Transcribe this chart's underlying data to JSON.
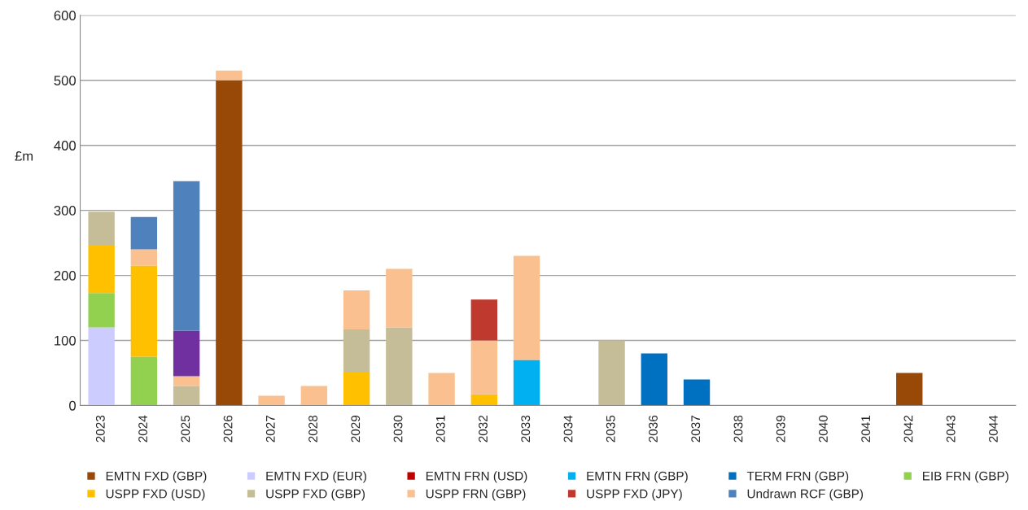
{
  "chart_data": {
    "type": "bar",
    "stacked": true,
    "ylabel": "£m",
    "categories": [
      "2023",
      "2024",
      "2025",
      "2026",
      "2027",
      "2028",
      "2029",
      "2030",
      "2031",
      "2032",
      "2033",
      "2034",
      "2035",
      "2036",
      "2037",
      "2038",
      "2039",
      "2040",
      "2041",
      "2042",
      "2043",
      "2044"
    ],
    "ylim": [
      0,
      600
    ],
    "yticks": [
      0,
      100,
      200,
      300,
      400,
      500,
      600
    ],
    "grid": "y",
    "legend": "bottom",
    "series": [
      {
        "name": "EMTN FXD (GBP)",
        "color": "#984807",
        "values": [
          null,
          null,
          null,
          500,
          null,
          null,
          null,
          null,
          null,
          null,
          null,
          null,
          null,
          null,
          null,
          null,
          null,
          null,
          null,
          50,
          null,
          null
        ]
      },
      {
        "name": "EMTN FXD (EUR)",
        "color": "#ccccff",
        "values": [
          120,
          null,
          null,
          null,
          null,
          null,
          null,
          null,
          null,
          null,
          null,
          null,
          null,
          null,
          null,
          null,
          null,
          null,
          null,
          null,
          null,
          null
        ]
      },
      {
        "name": "EMTN FRN (USD)",
        "color": "#c00000",
        "values": [
          null,
          null,
          null,
          null,
          null,
          null,
          null,
          null,
          null,
          null,
          null,
          null,
          null,
          null,
          null,
          null,
          null,
          null,
          null,
          null,
          null,
          null
        ]
      },
      {
        "name": "EMTN FRN (GBP)",
        "color": "#00b0f0",
        "values": [
          null,
          null,
          null,
          null,
          null,
          null,
          null,
          null,
          null,
          null,
          70,
          null,
          null,
          null,
          null,
          null,
          null,
          null,
          null,
          null,
          null,
          null
        ]
      },
      {
        "name": "TERM FRN (GBP)",
        "color": "#0070c0",
        "values": [
          null,
          null,
          null,
          null,
          null,
          null,
          null,
          null,
          null,
          null,
          null,
          null,
          null,
          80,
          40,
          null,
          null,
          null,
          null,
          null,
          null,
          null
        ]
      },
      {
        "name": "EIB FRN (GBP)",
        "color": "#92d050",
        "values": [
          53,
          75,
          null,
          null,
          null,
          null,
          null,
          null,
          null,
          null,
          null,
          null,
          null,
          null,
          null,
          null,
          null,
          null,
          null,
          null,
          null,
          null
        ]
      },
      {
        "name": "USPP FXD (USD)",
        "color": "#ffc000",
        "values": [
          74,
          140,
          null,
          null,
          null,
          null,
          52,
          null,
          null,
          17,
          null,
          null,
          null,
          null,
          null,
          null,
          null,
          null,
          null,
          null,
          null,
          null
        ]
      },
      {
        "name": "USPP FXD (GBP)",
        "color": "#c4bd97",
        "values": [
          51,
          null,
          30,
          null,
          null,
          null,
          65,
          120,
          null,
          null,
          null,
          null,
          100,
          null,
          null,
          null,
          null,
          null,
          null,
          null,
          null,
          null
        ]
      },
      {
        "name": "USPP FRN (GBP)",
        "color": "#fac090",
        "values": [
          null,
          25,
          15,
          15,
          15,
          30,
          60,
          90,
          50,
          83,
          160,
          null,
          null,
          null,
          null,
          null,
          null,
          null,
          null,
          null,
          null,
          null
        ]
      },
      {
        "name": "USPP FXD (JPY)",
        "color": "#c0392f",
        "values": [
          null,
          null,
          null,
          null,
          null,
          null,
          null,
          null,
          null,
          63,
          null,
          null,
          null,
          null,
          null,
          null,
          null,
          null,
          null,
          null,
          null,
          null
        ]
      },
      {
        "color": "#7030a0",
        "values": [
          null,
          null,
          70,
          null,
          null,
          null,
          null,
          null,
          null,
          null,
          null,
          null,
          null,
          null,
          null,
          null,
          null,
          null,
          null,
          null,
          null,
          null
        ]
      },
      {
        "name": "Undrawn RCF (GBP)",
        "color": "#4f81bd",
        "values": [
          null,
          50,
          230,
          null,
          null,
          null,
          null,
          null,
          null,
          null,
          null,
          null,
          null,
          null,
          null,
          null,
          null,
          null,
          null,
          null,
          null,
          null
        ]
      }
    ]
  }
}
